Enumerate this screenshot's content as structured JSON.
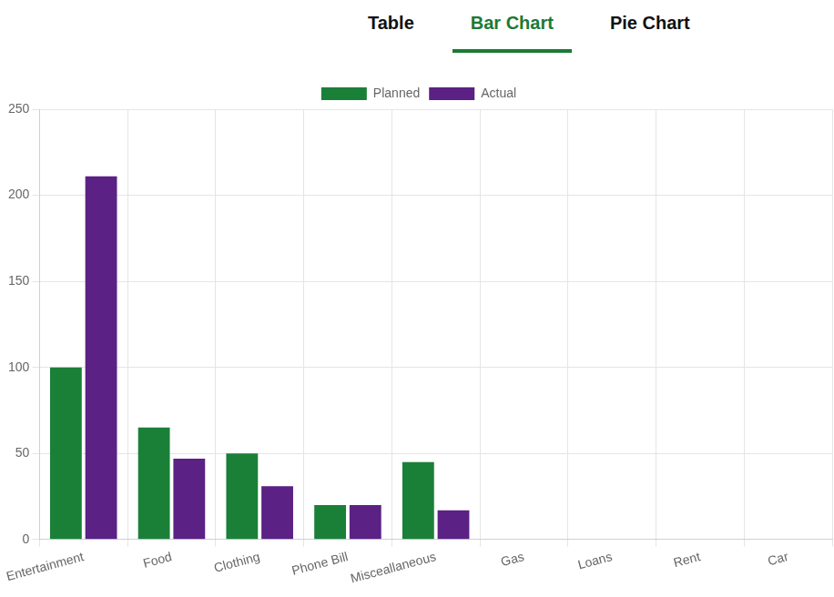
{
  "tabs": {
    "items": [
      "Table",
      "Bar Chart",
      "Pie Chart"
    ],
    "active": "Bar Chart"
  },
  "chart_data": {
    "type": "bar",
    "categories": [
      "Entertainment",
      "Food",
      "Clothing",
      "Phone Bill",
      "Misceallaneous",
      "Gas",
      "Loans",
      "Rent",
      "Car"
    ],
    "series": [
      {
        "name": "Planned",
        "color": "#1a8038",
        "values": [
          100,
          65,
          50,
          20,
          45,
          0,
          0,
          0,
          0
        ]
      },
      {
        "name": "Actual",
        "color": "#5b2184",
        "values": [
          211,
          47,
          31,
          20,
          17,
          0,
          0,
          0,
          0
        ]
      }
    ],
    "ylim": [
      0,
      250
    ],
    "yticks": [
      0,
      50,
      100,
      150,
      200,
      250
    ],
    "grid": true,
    "legend": "top"
  }
}
